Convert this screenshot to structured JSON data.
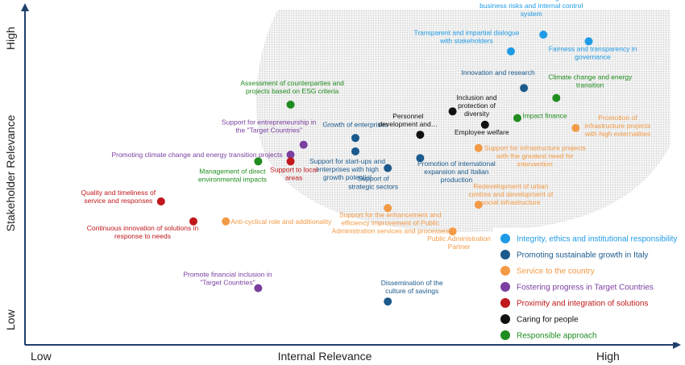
{
  "chart_data": {
    "type": "scatter",
    "xlabel": "Internal Relevance",
    "ylabel": "Stakeholder Relevance",
    "x_ticks": [
      "Low",
      "High"
    ],
    "y_ticks": [
      "Low",
      "High"
    ],
    "xlim": [
      0,
      10
    ],
    "ylim": [
      0,
      10
    ],
    "grid": false,
    "legend_position": "bottom-right",
    "series": [
      {
        "name": "Integrity, ethics and institutional responsibility",
        "color": "#1f9be6",
        "points": [
          {
            "label": "Effectiveness in the management of business risks and internal control system",
            "x": 8.0,
            "y": 9.3
          },
          {
            "label": "Fairness and transparency in governance",
            "x": 8.7,
            "y": 9.1
          },
          {
            "label": "Transparent and impartial dialogue with stakeholders",
            "x": 7.5,
            "y": 8.8
          }
        ]
      },
      {
        "name": "Promoting sustainable growth in Italy",
        "color": "#1b5a8c",
        "points": [
          {
            "label": "Innovation and research",
            "x": 7.7,
            "y": 7.7
          },
          {
            "label": "Growth of enterprises",
            "x": 5.1,
            "y": 6.2
          },
          {
            "label": "Support for start-ups and enterprises with high growth potential",
            "x": 5.1,
            "y": 5.8
          },
          {
            "label": "Support of strategic sectors",
            "x": 5.6,
            "y": 5.3
          },
          {
            "label": "Promotion of international expansion and Italian production",
            "x": 6.1,
            "y": 5.6
          },
          {
            "label": "Dissemination of the culture of savings",
            "x": 5.6,
            "y": 1.3
          }
        ]
      },
      {
        "name": "Service to the country",
        "color": "#f29a45",
        "points": [
          {
            "label": "Promotion of infrastructure projects with high externalities",
            "x": 8.5,
            "y": 6.5
          },
          {
            "label": "Support for infrastructure projects with the greatest need for intervention",
            "x": 7.0,
            "y": 5.9
          },
          {
            "label": "Redevelopment of urban centres and development of social infrastructure",
            "x": 7.0,
            "y": 4.2
          },
          {
            "label": "Support for the enhancement and efficiency improvement of Public Administration services and processes",
            "x": 5.6,
            "y": 4.1
          },
          {
            "label": "Public Administration Partner",
            "x": 6.6,
            "y": 3.4
          },
          {
            "label": "Anti-cyclical role and additionality",
            "x": 3.1,
            "y": 3.7
          }
        ]
      },
      {
        "name": "Fostering progress in Target Countries",
        "color": "#7b3fa0",
        "points": [
          {
            "label": "Support for entrepreneurship in the \"Target Countries\"",
            "x": 4.3,
            "y": 6.0
          },
          {
            "label": "Promoting climate change and energy transition projects",
            "x": 4.1,
            "y": 5.7
          },
          {
            "label": "Promote financial inclusion in \"Target Countries\"",
            "x": 3.6,
            "y": 1.7
          }
        ]
      },
      {
        "name": "Proximity and integration of solutions",
        "color": "#c0171b",
        "points": [
          {
            "label": "Support to local areas",
            "x": 4.1,
            "y": 5.5
          },
          {
            "label": "Quality and timeliness of service and responses",
            "x": 2.1,
            "y": 4.3
          },
          {
            "label": "Continuous innovation of solutions in response to needs",
            "x": 2.6,
            "y": 3.7
          }
        ]
      },
      {
        "name": "Caring for people",
        "color": "#111111",
        "points": [
          {
            "label": "Inclusion and protection of diversity",
            "x": 6.6,
            "y": 7.0
          },
          {
            "label": "Personnel development and…",
            "x": 6.1,
            "y": 6.3
          },
          {
            "label": "Employee welfare",
            "x": 7.1,
            "y": 6.6
          }
        ]
      },
      {
        "name": "Responsible approach",
        "color": "#1f8c1f",
        "points": [
          {
            "label": "Climate change and energy transition",
            "x": 8.2,
            "y": 7.4
          },
          {
            "label": "Assessment of counterparties and projects based on ESG criteria",
            "x": 4.1,
            "y": 7.2
          },
          {
            "label": "Impact finance",
            "x": 7.6,
            "y": 6.8
          },
          {
            "label": "Management of direct environmental impacts",
            "x": 3.6,
            "y": 5.5
          }
        ]
      }
    ]
  }
}
